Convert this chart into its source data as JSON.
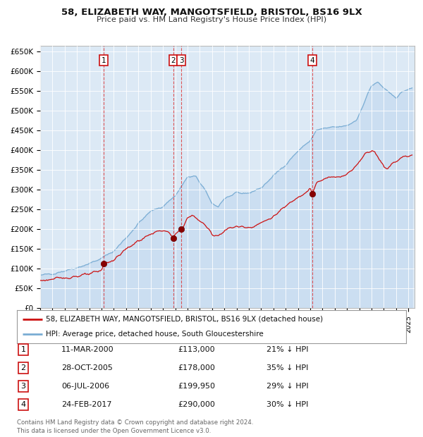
{
  "title_line1": "58, ELIZABETH WAY, MANGOTSFIELD, BRISTOL, BS16 9LX",
  "title_line2": "Price paid vs. HM Land Registry's House Price Index (HPI)",
  "background_color": "#dce9f5",
  "hpi_color": "#7aadd4",
  "hpi_fill_color": "#c5daf0",
  "price_color": "#cc1111",
  "grid_color": "#ffffff",
  "transactions": [
    {
      "num": 1,
      "date_x": 2000.19,
      "price": 113000,
      "label": "1",
      "date_str": "11-MAR-2000",
      "price_str": "£113,000",
      "pct": "21% ↓ HPI"
    },
    {
      "num": 2,
      "date_x": 2005.83,
      "price": 178000,
      "label": "2",
      "date_str": "28-OCT-2005",
      "price_str": "£178,000",
      "pct": "35% ↓ HPI"
    },
    {
      "num": 3,
      "date_x": 2006.51,
      "price": 199950,
      "label": "3",
      "date_str": "06-JUL-2006",
      "price_str": "£199,950",
      "pct": "29% ↓ HPI"
    },
    {
      "num": 4,
      "date_x": 2017.15,
      "price": 290000,
      "label": "4",
      "date_str": "24-FEB-2017",
      "price_str": "£290,000",
      "pct": "30% ↓ HPI"
    }
  ],
  "legend_label_red": "58, ELIZABETH WAY, MANGOTSFIELD, BRISTOL, BS16 9LX (detached house)",
  "legend_label_blue": "HPI: Average price, detached house, South Gloucestershire",
  "footer": "Contains HM Land Registry data © Crown copyright and database right 2024.\nThis data is licensed under the Open Government Licence v3.0.",
  "yticks": [
    0,
    50000,
    100000,
    150000,
    200000,
    250000,
    300000,
    350000,
    400000,
    450000,
    500000,
    550000,
    600000,
    650000
  ],
  "xlim_start": 1995.0,
  "xlim_end": 2025.5,
  "ylim_top": 665000
}
